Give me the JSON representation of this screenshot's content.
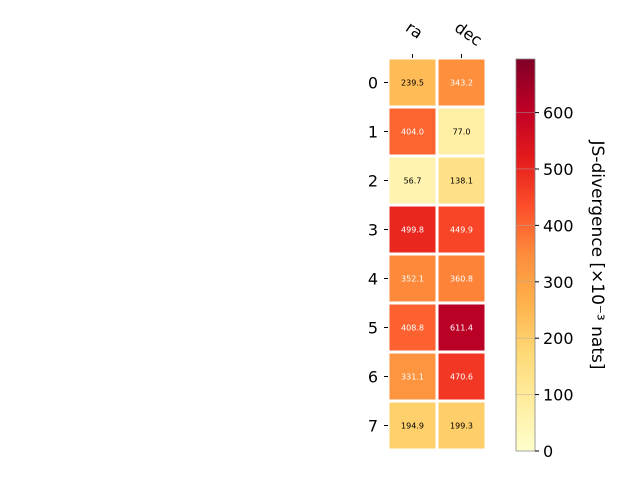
{
  "chart_data": {
    "type": "heatmap",
    "columns": [
      "ra",
      "dec"
    ],
    "rows": [
      "0",
      "1",
      "2",
      "3",
      "4",
      "5",
      "6",
      "7"
    ],
    "values": [
      [
        239.5,
        343.2
      ],
      [
        404.0,
        77.0
      ],
      [
        56.7,
        138.1
      ],
      [
        499.8,
        449.9
      ],
      [
        352.1,
        360.8
      ],
      [
        408.8,
        611.4
      ],
      [
        331.1,
        470.6
      ],
      [
        194.9,
        199.3
      ]
    ],
    "value_labels": [
      [
        "239.5",
        "343.2"
      ],
      [
        "404.0",
        "77.0"
      ],
      [
        "56.7",
        "138.1"
      ],
      [
        "499.8",
        "449.9"
      ],
      [
        "352.1",
        "360.8"
      ],
      [
        "408.8",
        "611.4"
      ],
      [
        "331.1",
        "470.6"
      ],
      [
        "194.9",
        "199.3"
      ]
    ],
    "colorbar": {
      "label": "JS-divergence [×10⁻³ nats]",
      "range": [
        0,
        695
      ],
      "ticks": [
        0,
        100,
        200,
        300,
        400,
        500,
        600
      ],
      "tick_labels": [
        "0",
        "100",
        "200",
        "300",
        "400",
        "500",
        "600"
      ],
      "colormap": "YlOrRd"
    }
  }
}
